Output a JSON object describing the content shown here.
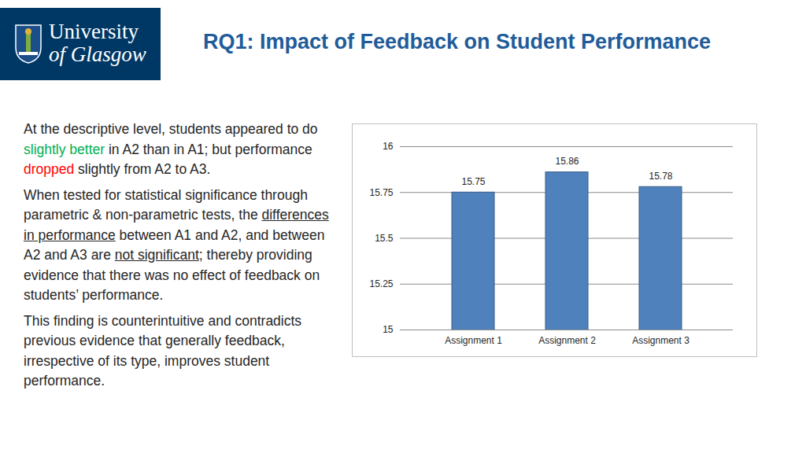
{
  "header": {
    "logo": [
      "University",
      "of Glasgow"
    ],
    "title": "RQ1: Impact of Feedback on Student Performance"
  },
  "body": [
    [
      {
        "text": "At the descriptive level, students appeared to do "
      },
      {
        "text": "slightly better",
        "style": "green"
      },
      {
        "text": " in A2 than in A1; but performance "
      },
      {
        "text": "dropped",
        "style": "red"
      },
      {
        "text": " slightly from A2 to A3."
      }
    ],
    [
      {
        "text": "When tested for statistical significance through parametric & non-parametric tests, the "
      },
      {
        "text": "differences in performance",
        "style": "underline"
      },
      {
        "text": " between A1 and A2, and between A2 and A3 are "
      },
      {
        "text": "not significant",
        "style": "underline"
      },
      {
        "text": "; thereby providing evidence that there was no effect of feedback on students’ performance."
      }
    ],
    [
      {
        "text": "This finding is counterintuitive and contradicts previous evidence that generally feedback, irrespective of its type, improves student performance."
      }
    ]
  ],
  "chart_data": {
    "type": "bar",
    "categories": [
      "Assignment 1",
      "Assignment 2",
      "Assignment 3"
    ],
    "values": [
      15.75,
      15.86,
      15.78
    ],
    "color": "#4f81bd",
    "ylim": [
      15,
      16
    ],
    "yticks": [
      15,
      15.25,
      15.5,
      15.75,
      16
    ],
    "grid": true,
    "data_labels": true
  }
}
